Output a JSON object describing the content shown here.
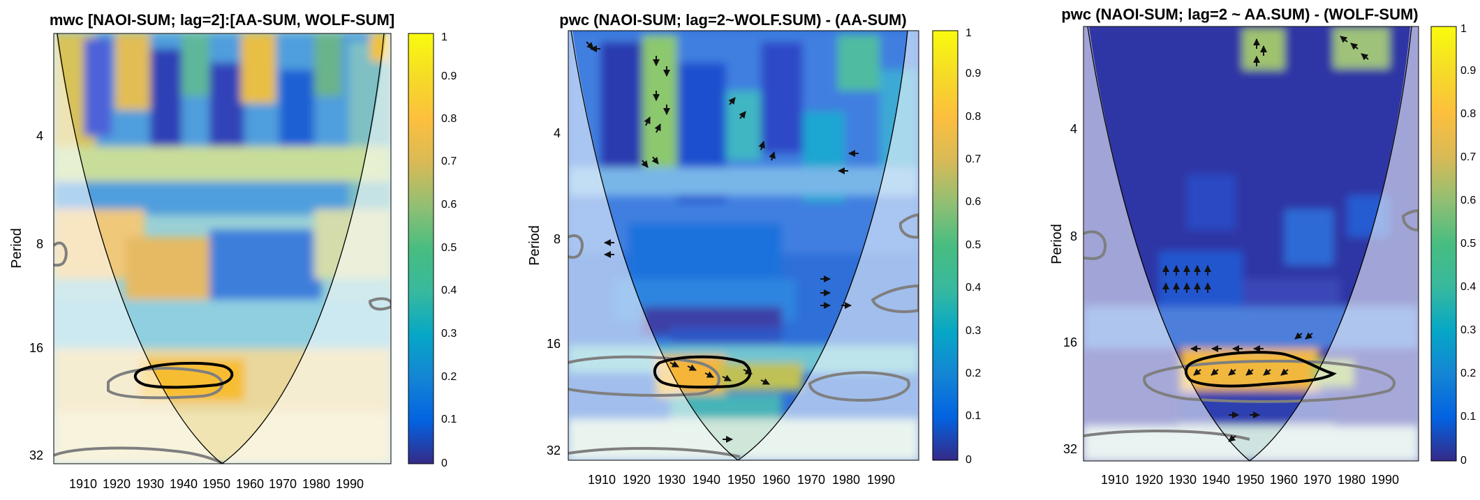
{
  "chart_data": [
    {
      "type": "heatmap",
      "title": "mwc [NAOI-SUM; lag=2]:[AA-SUM, WOLF-SUM]",
      "ylabel": "Period",
      "xlabel": "",
      "x_ticks": [
        1910,
        1920,
        1930,
        1940,
        1950,
        1960,
        1970,
        1980,
        1990
      ],
      "y_ticks": [
        4,
        8,
        16,
        32
      ],
      "y_scale": "log2",
      "y_reversed": true,
      "xlim": [
        1901,
        2000
      ],
      "ylim": [
        2,
        34
      ],
      "colorbar": {
        "min": 0,
        "max": 1,
        "ticks": [
          0,
          0.1,
          0.2,
          0.3,
          0.4,
          0.5,
          0.6,
          0.7,
          0.8,
          0.9,
          1
        ],
        "colormap": "parula"
      },
      "significant_regions": [
        {
          "label": "significant (black contour)",
          "x_range": [
            1926,
            1947
          ],
          "period_center": 19.5,
          "level": "high"
        },
        {
          "label": "grey contour",
          "x_range": [
            1917,
            1947
          ],
          "period_center": 20,
          "level": "cone edge"
        },
        {
          "label": "grey contour",
          "x_range": [
            1901,
            1906
          ],
          "period_center": 8.6,
          "level": "edge"
        },
        {
          "label": "grey contour",
          "x_range": [
            1984,
            1995
          ],
          "period_center": 12,
          "level": "edge"
        },
        {
          "label": "grey contour",
          "x_range": [
            1901,
            1955
          ],
          "period_center": 32,
          "level": "edge"
        }
      ],
      "arrows": false,
      "grid": false
    },
    {
      "type": "heatmap",
      "title": "pwc (NAOI-SUM; lag=2~WOLF.SUM) - (AA-SUM)",
      "ylabel": "Period",
      "xlabel": "",
      "x_ticks": [
        1910,
        1920,
        1930,
        1940,
        1950,
        1960,
        1970,
        1980,
        1990
      ],
      "y_ticks": [
        4,
        8,
        16,
        32
      ],
      "y_scale": "log2",
      "y_reversed": true,
      "xlim": [
        1901,
        2000
      ],
      "ylim": [
        2,
        34
      ],
      "colorbar": {
        "min": 0,
        "max": 1,
        "ticks": [
          0,
          0.1,
          0.2,
          0.3,
          0.4,
          0.5,
          0.6,
          0.7,
          0.8,
          0.9,
          1
        ],
        "colormap": "parula"
      },
      "significant_regions": [
        {
          "label": "significant (black contour)",
          "x_range": [
            1928,
            1950
          ],
          "period_center": 19.5,
          "level": "high"
        },
        {
          "label": "grey contour",
          "x_range": [
            1901,
            1950
          ],
          "period_center": 20,
          "level": "cone edge"
        },
        {
          "label": "grey contour",
          "x_range": [
            1966,
            1995
          ],
          "period_center": 22,
          "level": "cone edge"
        },
        {
          "label": "grey contour",
          "x_range": [
            1980,
            2000
          ],
          "period_center": 12,
          "level": "edge"
        },
        {
          "label": "grey contour",
          "x_range": [
            1988,
            2000
          ],
          "period_center": 7.4,
          "level": "edge"
        }
      ],
      "arrows": true,
      "grid": false
    },
    {
      "type": "heatmap",
      "title": "pwc (NAOI-SUM; lag=2 ~ AA.SUM) - (WOLF-SUM)",
      "ylabel": "Period",
      "xlabel": "",
      "x_ticks": [
        1910,
        1920,
        1930,
        1940,
        1950,
        1960,
        1970,
        1980,
        1990
      ],
      "y_ticks": [
        4,
        8,
        16,
        32
      ],
      "y_scale": "log2",
      "y_reversed": true,
      "xlim": [
        1901,
        2000
      ],
      "ylim": [
        2,
        34
      ],
      "colorbar": {
        "min": 0,
        "max": 1,
        "ticks": [
          0,
          0.1,
          0.2,
          0.3,
          0.4,
          0.5,
          0.6,
          0.7,
          0.8,
          0.9,
          1
        ],
        "colormap": "parula"
      },
      "significant_regions": [
        {
          "label": "significant (black contour)",
          "x_range": [
            1928,
            1970
          ],
          "period_center": 19.5,
          "level": "high"
        },
        {
          "label": "grey contour",
          "x_range": [
            1920,
            1995
          ],
          "period_center": 20.5,
          "level": "cone edge"
        },
        {
          "label": "grey contour",
          "x_range": [
            1901,
            1918
          ],
          "period_center": 8.2,
          "level": "edge"
        }
      ],
      "arrows": true,
      "grid": false
    }
  ],
  "colors": {
    "contour_significant": "#000000",
    "contour_grey": "#7f7f7f",
    "cone": "#000000",
    "arrow": "#111111"
  }
}
